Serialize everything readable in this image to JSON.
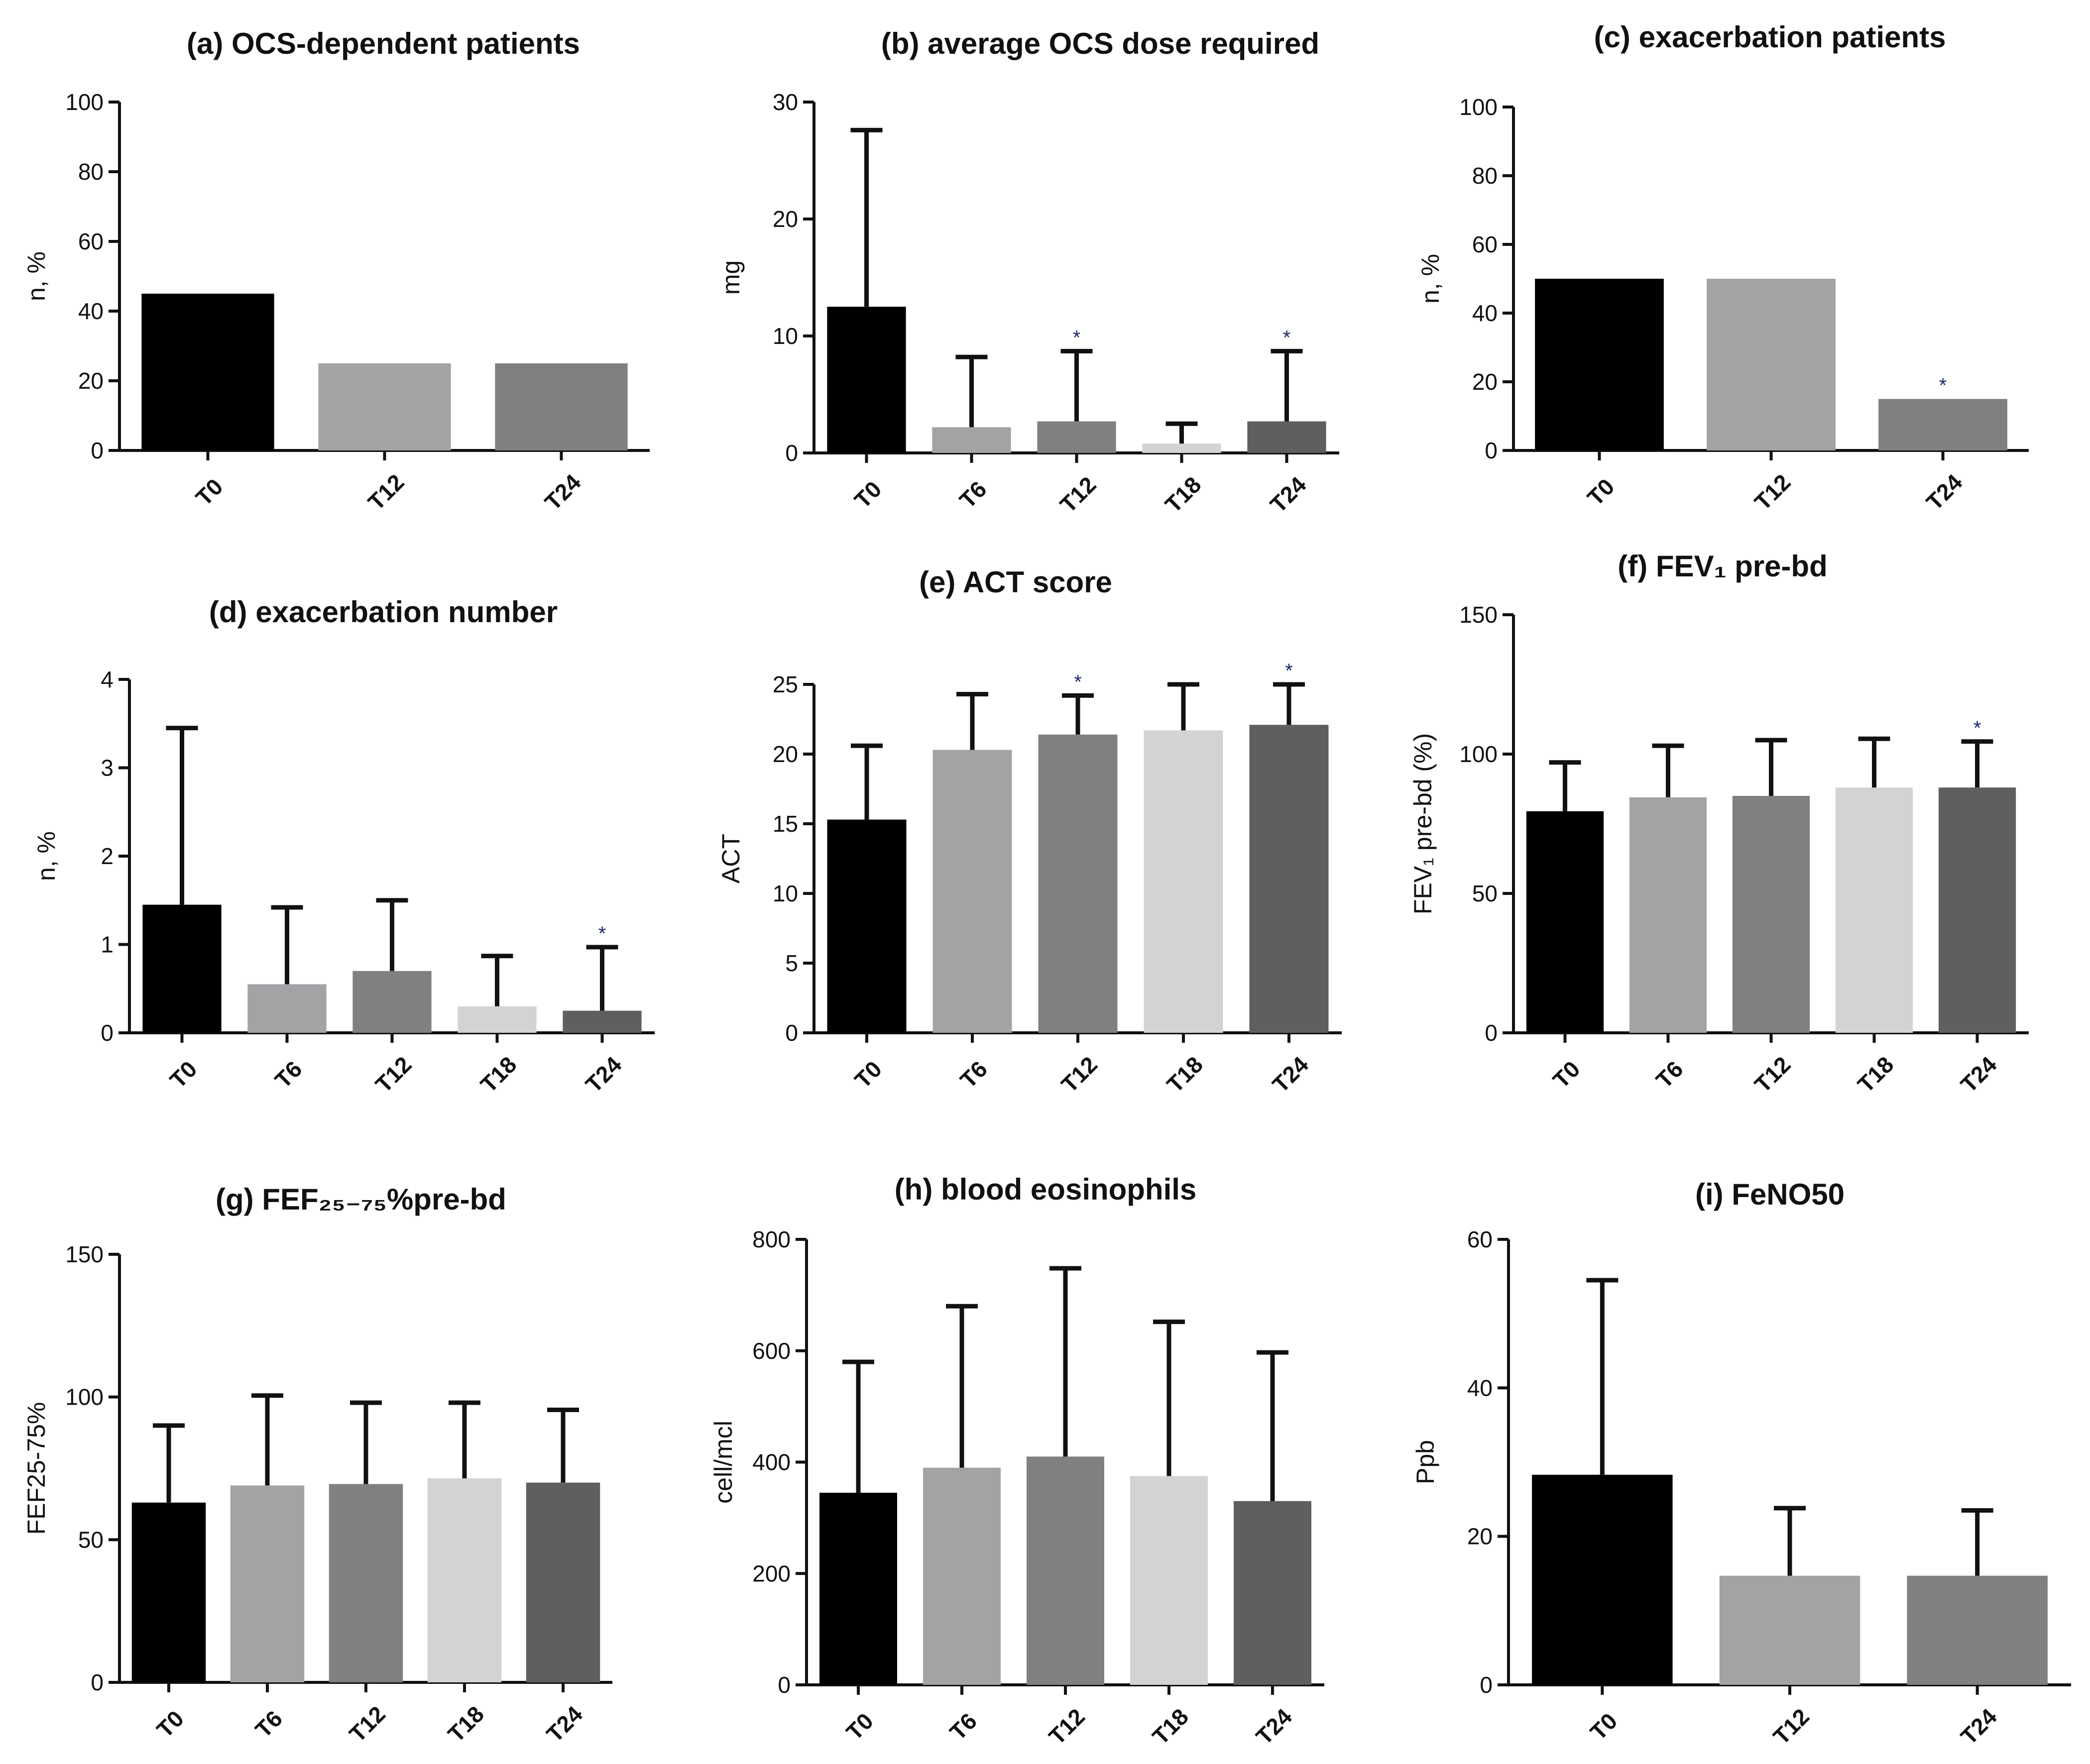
{
  "chart_data": [
    {
      "id": "a",
      "type": "bar",
      "title": "(a) OCS-dependent patients",
      "ylabel": "n, %",
      "ylim": [
        0,
        100
      ],
      "yticks": [
        0,
        20,
        40,
        60,
        80,
        100
      ],
      "categories": [
        "T0",
        "T12",
        "T24"
      ],
      "values": [
        45,
        25,
        25
      ],
      "colors": [
        "#000000",
        "#a3a3a6",
        "#808080"
      ],
      "error_upper": [
        null,
        null,
        null
      ],
      "significant": [
        false,
        false,
        false
      ]
    },
    {
      "id": "b",
      "type": "bar",
      "title": "(b) average OCS dose required",
      "ylabel": "mg",
      "ylim": [
        0,
        30
      ],
      "yticks": [
        0,
        10,
        20,
        30
      ],
      "categories": [
        "T0",
        "T6",
        "T12",
        "T18",
        "T24"
      ],
      "values": [
        12.5,
        2.2,
        2.7,
        0.8,
        2.7
      ],
      "colors": [
        "#000000",
        "#a3a3a6",
        "#808080",
        "#d3d3d3",
        "#5f5f5f"
      ],
      "error_upper": [
        27.6,
        8.2,
        8.7,
        2.5,
        8.7
      ],
      "significant": [
        false,
        false,
        true,
        false,
        true
      ]
    },
    {
      "id": "c",
      "type": "bar",
      "title": "(c) exacerbation patients",
      "ylabel": "n, %",
      "ylim": [
        0,
        100
      ],
      "yticks": [
        0,
        20,
        40,
        60,
        80,
        100
      ],
      "categories": [
        "T0",
        "T12",
        "T24"
      ],
      "values": [
        50,
        50,
        15
      ],
      "colors": [
        "#000000",
        "#a3a3a6",
        "#808080"
      ],
      "error_upper": [
        null,
        null,
        null
      ],
      "significant": [
        false,
        false,
        true
      ]
    },
    {
      "id": "d",
      "type": "bar",
      "title": "(d) exacerbation number",
      "ylabel": "n, %",
      "ylim": [
        0,
        4
      ],
      "yticks": [
        0,
        1,
        2,
        3,
        4
      ],
      "categories": [
        "T0",
        "T6",
        "T12",
        "T18",
        "T24"
      ],
      "values": [
        1.45,
        0.55,
        0.7,
        0.3,
        0.25
      ],
      "colors": [
        "#000000",
        "#a3a3a6",
        "#808080",
        "#d3d3d3",
        "#5f5f5f"
      ],
      "error_upper": [
        3.45,
        1.42,
        1.5,
        0.87,
        0.97
      ],
      "significant": [
        false,
        false,
        false,
        false,
        true
      ]
    },
    {
      "id": "e",
      "type": "bar",
      "title": "(e) ACT score",
      "ylabel": "ACT",
      "ylim": [
        0,
        25
      ],
      "yticks": [
        0,
        5,
        10,
        15,
        20,
        25
      ],
      "categories": [
        "T0",
        "T6",
        "T12",
        "T18",
        "T24"
      ],
      "values": [
        15.3,
        20.3,
        21.4,
        21.7,
        22.1
      ],
      "colors": [
        "#000000",
        "#a3a3a6",
        "#808080",
        "#d3d3d3",
        "#5f5f5f"
      ],
      "error_upper": [
        20.6,
        24.3,
        24.2,
        25,
        25
      ],
      "significant": [
        false,
        false,
        true,
        false,
        true
      ]
    },
    {
      "id": "f",
      "type": "bar",
      "title": "(f) FEV₁ pre-bd",
      "ylabel": "FEV₁ pre-bd (%)",
      "ylim": [
        0,
        150
      ],
      "yticks": [
        0,
        50,
        100,
        150
      ],
      "categories": [
        "T0",
        "T6",
        "T12",
        "T18",
        "T24"
      ],
      "values": [
        79.5,
        84.5,
        85,
        88,
        88
      ],
      "colors": [
        "#000000",
        "#a3a3a6",
        "#808080",
        "#d3d3d3",
        "#5f5f5f"
      ],
      "error_upper": [
        97,
        103,
        105,
        105.5,
        104.5
      ],
      "significant": [
        false,
        false,
        false,
        false,
        true
      ]
    },
    {
      "id": "g",
      "type": "bar",
      "title": "(g) FEF₂₅₋₇₅%pre-bd",
      "ylabel": "FEF25-75%",
      "ylim": [
        0,
        150
      ],
      "yticks": [
        0,
        50,
        100,
        150
      ],
      "categories": [
        "T0",
        "T6",
        "T12",
        "T18",
        "T24"
      ],
      "values": [
        63,
        69,
        69.5,
        71.5,
        70
      ],
      "colors": [
        "#000000",
        "#a3a3a6",
        "#808080",
        "#d3d3d3",
        "#5f5f5f"
      ],
      "error_upper": [
        90,
        100.5,
        98,
        98,
        95.5
      ],
      "significant": [
        false,
        false,
        false,
        false,
        false
      ]
    },
    {
      "id": "h",
      "type": "bar",
      "title": "(h) blood eosinophils",
      "ylabel": "cell/mcl",
      "ylim": [
        0,
        800
      ],
      "yticks": [
        0,
        200,
        400,
        600,
        800
      ],
      "categories": [
        "T0",
        "T6",
        "T12",
        "T18",
        "T24"
      ],
      "values": [
        345,
        390,
        410,
        375,
        330
      ],
      "colors": [
        "#000000",
        "#a3a3a6",
        "#808080",
        "#d3d3d3",
        "#5f5f5f"
      ],
      "error_upper": [
        580,
        680,
        748,
        652,
        597
      ],
      "significant": [
        false,
        false,
        false,
        false,
        false
      ]
    },
    {
      "id": "i",
      "type": "bar",
      "title": "(i) FeNO50",
      "ylabel": "Ppb",
      "ylim": [
        0,
        60
      ],
      "yticks": [
        0,
        20,
        40,
        60
      ],
      "categories": [
        "T0",
        "T12",
        "T24"
      ],
      "values": [
        28.3,
        14.7,
        14.7
      ],
      "colors": [
        "#000000",
        "#a3a3a6",
        "#808080"
      ],
      "error_upper": [
        54.5,
        23.8,
        23.5
      ],
      "significant": [
        false,
        false,
        false
      ]
    }
  ]
}
